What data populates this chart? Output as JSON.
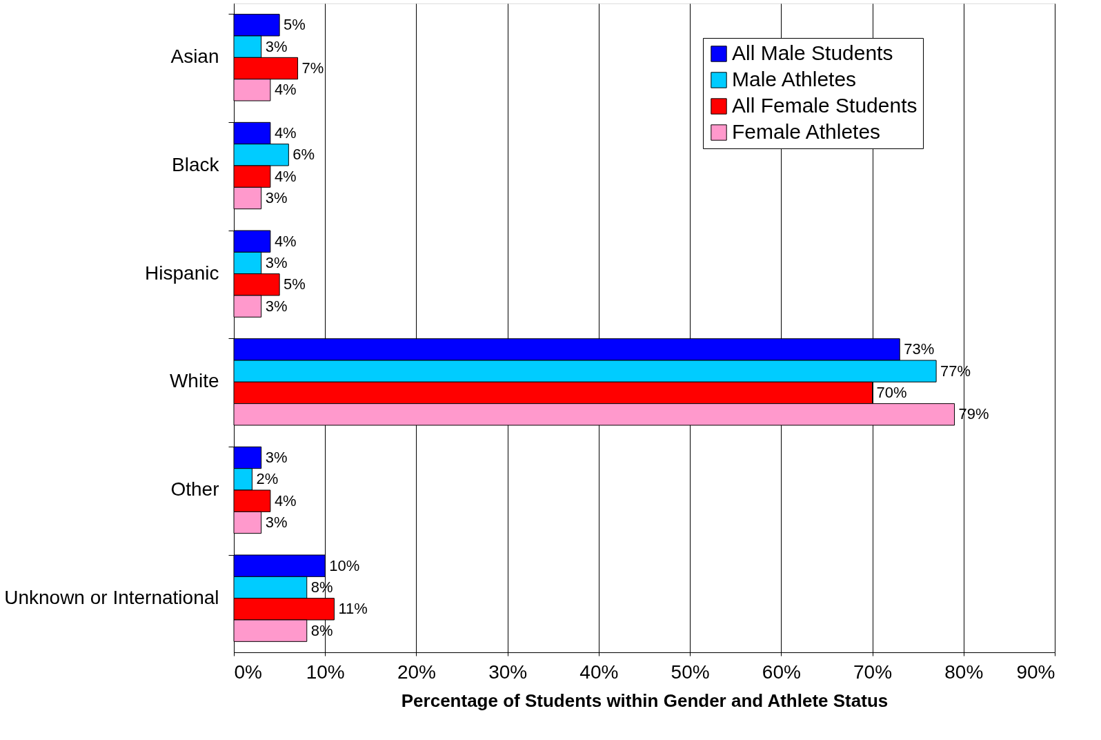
{
  "chart_data": {
    "type": "bar",
    "orientation": "horizontal",
    "xlabel": "Percentage of Students within Gender and Athlete Status",
    "categories": [
      "Asian",
      "Black",
      "Hispanic",
      "White",
      "Other",
      "Unknown or International"
    ],
    "series": [
      {
        "name": "All Male Students",
        "color": "#0000ff",
        "values": [
          5,
          4,
          4,
          73,
          3,
          10
        ],
        "value_labels": [
          "5%",
          "4%",
          "4%",
          "73%",
          "3%",
          "10%"
        ]
      },
      {
        "name": "Male Athletes",
        "color": "#00ccff",
        "values": [
          3,
          6,
          3,
          77,
          2,
          8
        ],
        "value_labels": [
          "3%",
          "6%",
          "3%",
          "77%",
          "2%",
          "8%"
        ]
      },
      {
        "name": "All Female Students",
        "color": "#ff0000",
        "values": [
          7,
          4,
          5,
          70,
          4,
          11
        ],
        "value_labels": [
          "7%",
          "4%",
          "5%",
          "70%",
          "4%",
          "11%"
        ]
      },
      {
        "name": "Female Athletes",
        "color": "#ff99cc",
        "values": [
          4,
          3,
          3,
          79,
          3,
          8
        ],
        "value_labels": [
          "4%",
          "3%",
          "3%",
          "79%",
          "3%",
          "8%"
        ]
      }
    ],
    "xlim": [
      0,
      90
    ],
    "xticks": [
      {
        "value": 0,
        "label": "0%"
      },
      {
        "value": 10,
        "label": "10%"
      },
      {
        "value": 20,
        "label": "20%"
      },
      {
        "value": 30,
        "label": "30%"
      },
      {
        "value": 40,
        "label": "40%"
      },
      {
        "value": 50,
        "label": "50%"
      },
      {
        "value": 60,
        "label": "60%"
      },
      {
        "value": 70,
        "label": "70%"
      },
      {
        "value": 80,
        "label": "80%"
      },
      {
        "value": 90,
        "label": "90%"
      }
    ],
    "grid": "x",
    "legend": "top right"
  }
}
